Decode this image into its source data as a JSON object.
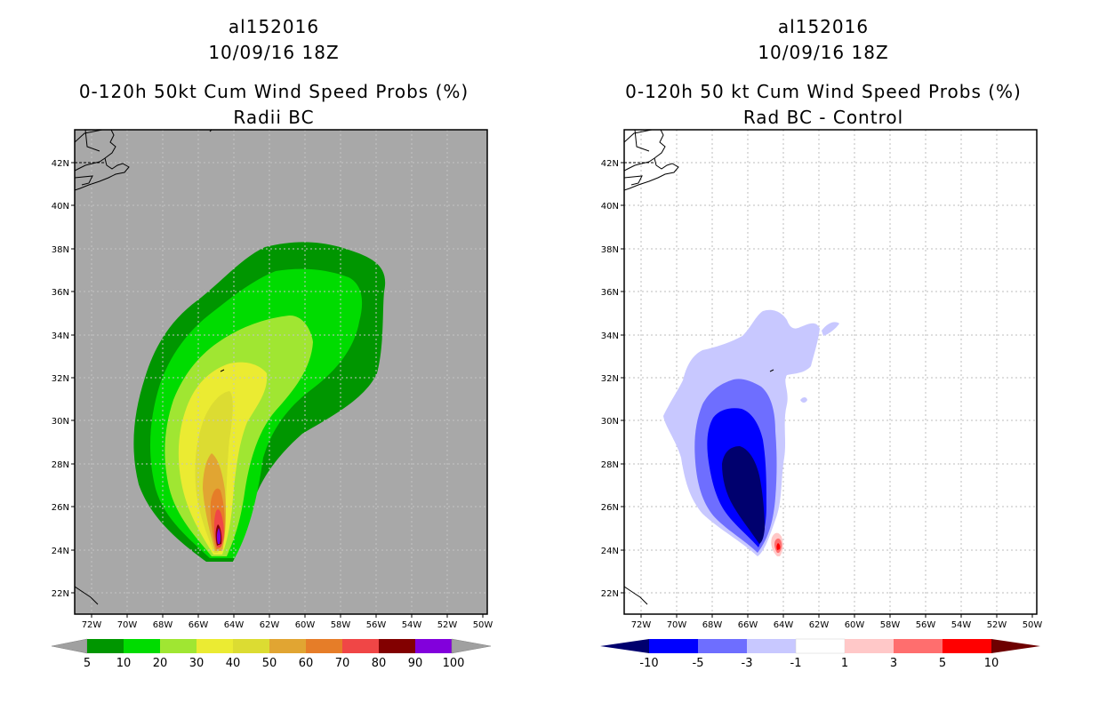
{
  "left_panel": {
    "storm_id": "al152016",
    "datetime": "10/09/16 18Z",
    "title": "0-120h 50kt Cum Wind Speed Probs (%)",
    "subtitle": "Radii BC",
    "colorbar": {
      "labels": [
        "5",
        "10",
        "20",
        "30",
        "40",
        "50",
        "60",
        "70",
        "80",
        "90",
        "100"
      ],
      "colors": [
        "#a0a0a0",
        "#009600",
        "#00dc00",
        "#a0e632",
        "#ebeb32",
        "#dcdc32",
        "#e1a532",
        "#e67d28",
        "#f04646",
        "#820000",
        "#8200dc",
        "#a0a0a0"
      ]
    }
  },
  "right_panel": {
    "storm_id": "al152016",
    "datetime": "10/09/16 18Z",
    "title": "0-120h 50 kt Cum Wind Speed Probs (%)",
    "subtitle": "Rad BC - Control",
    "colorbar": {
      "labels": [
        "-10",
        "-5",
        "-3",
        "-1",
        "1",
        "3",
        "5",
        "10"
      ],
      "colors": [
        "#00006e",
        "#0000ff",
        "#6e6eff",
        "#c8c8ff",
        "#ffffff",
        "#ffc8c8",
        "#ff6e6e",
        "#ff0000",
        "#6e0000"
      ]
    }
  },
  "axes": {
    "lat_labels": [
      "42N",
      "40N",
      "38N",
      "36N",
      "34N",
      "32N",
      "30N",
      "28N",
      "26N",
      "24N",
      "22N"
    ],
    "lon_labels": [
      "72W",
      "70W",
      "68W",
      "66W",
      "64W",
      "62W",
      "60W",
      "58W",
      "56W",
      "54W",
      "52W",
      "50W"
    ],
    "lat_range": [
      21,
      43.2
    ],
    "lon_range": [
      -73.2,
      -50
    ]
  },
  "colors": {
    "map_background": "#a8a8a8",
    "right_background": "#ffffff",
    "grid": "#c0c0c0",
    "coast": "#000000"
  }
}
